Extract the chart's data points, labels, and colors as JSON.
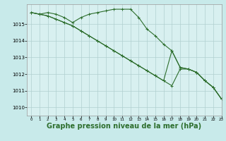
{
  "background_color": "#c8eaea",
  "plot_bg_color": "#d8f0f0",
  "grid_color": "#b0d0d0",
  "line_color": "#2d6e2d",
  "xlabel": "Graphe pression niveau de la mer (hPa)",
  "xlabel_fontsize": 7.0,
  "ylim": [
    1009.5,
    1016.2
  ],
  "xlim": [
    -0.5,
    23
  ],
  "yticks": [
    1010,
    1011,
    1012,
    1013,
    1014,
    1015
  ],
  "xticks": [
    0,
    1,
    2,
    3,
    4,
    5,
    6,
    7,
    8,
    9,
    10,
    11,
    12,
    13,
    14,
    15,
    16,
    17,
    18,
    19,
    20,
    21,
    22,
    23
  ],
  "series1": [
    1015.7,
    1015.6,
    1015.7,
    1015.6,
    1015.4,
    1015.1,
    1015.4,
    1015.6,
    1015.7,
    1015.8,
    1015.9,
    1015.9,
    1015.9,
    1015.4,
    1014.7,
    1014.3,
    1013.8,
    1013.4,
    1012.4,
    1012.3,
    1012.1,
    1011.6,
    1011.2,
    1010.5
  ],
  "series2": [
    1015.7,
    1015.6,
    1015.5,
    1015.3,
    1015.1,
    1014.9,
    1014.6,
    1014.3,
    1014.0,
    1013.7,
    1013.4,
    1013.1,
    1012.8,
    1012.5,
    1012.2,
    1011.9,
    1011.6,
    1011.3,
    1012.3,
    1012.3,
    1012.1,
    1011.6,
    1011.2,
    1010.5
  ],
  "series3": [
    1015.7,
    1015.6,
    1015.5,
    1015.3,
    1015.1,
    1014.9,
    1014.6,
    1014.3,
    1014.0,
    1013.7,
    1013.4,
    1013.1,
    1012.8,
    1012.5,
    1012.2,
    1011.9,
    1011.6,
    1013.4,
    1012.4,
    1012.3,
    1012.1,
    1011.6,
    1011.2,
    1010.5
  ]
}
